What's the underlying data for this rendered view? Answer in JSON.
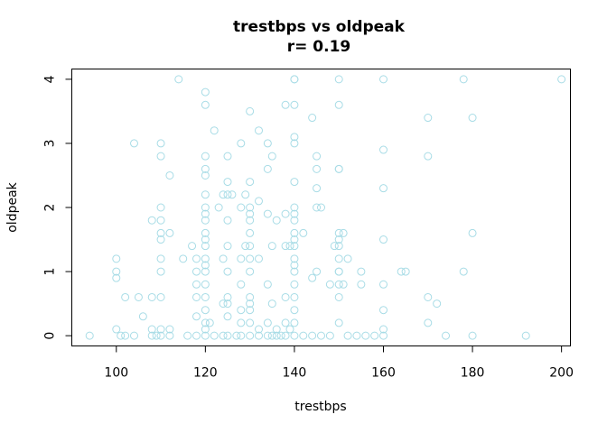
{
  "chart_data": {
    "type": "scatter",
    "title": "trestbps vs oldpeak",
    "subtitle": "r= 0.19",
    "xlabel": "trestbps",
    "ylabel": "oldpeak",
    "xlim": [
      90,
      202
    ],
    "ylim": [
      -0.16,
      4.16
    ],
    "x_ticks": [
      100,
      120,
      140,
      160,
      180,
      200
    ],
    "y_ticks": [
      0,
      1,
      2,
      3,
      4
    ],
    "grid": false,
    "point_color": "#a8dce6",
    "series": [
      {
        "points": [
          [
            94,
            0
          ],
          [
            100,
            1.2
          ],
          [
            100,
            1
          ],
          [
            100,
            0.9
          ],
          [
            100,
            0.1
          ],
          [
            101,
            0
          ],
          [
            102,
            0
          ],
          [
            102,
            0.6
          ],
          [
            104,
            3
          ],
          [
            104,
            0
          ],
          [
            105,
            0.6
          ],
          [
            106,
            0.3
          ],
          [
            108,
            0
          ],
          [
            108,
            0.6
          ],
          [
            108,
            0.1
          ],
          [
            108,
            1.8
          ],
          [
            109,
            0
          ],
          [
            110,
            3
          ],
          [
            110,
            2.8
          ],
          [
            110,
            2
          ],
          [
            110,
            1.8
          ],
          [
            110,
            1.6
          ],
          [
            110,
            1.5
          ],
          [
            110,
            1.2
          ],
          [
            110,
            1
          ],
          [
            110,
            0.6
          ],
          [
            110,
            0
          ],
          [
            110,
            0.1
          ],
          [
            112,
            2.5
          ],
          [
            112,
            1.6
          ],
          [
            112,
            0.1
          ],
          [
            112,
            0
          ],
          [
            114,
            4
          ],
          [
            115,
            1.2
          ],
          [
            116,
            0
          ],
          [
            117,
            1.4
          ],
          [
            118,
            1.2
          ],
          [
            118,
            0.8
          ],
          [
            118,
            0.6
          ],
          [
            118,
            0.3
          ],
          [
            118,
            0
          ],
          [
            118,
            1
          ],
          [
            120,
            3.8
          ],
          [
            120,
            3.6
          ],
          [
            120,
            2.8
          ],
          [
            120,
            2.6
          ],
          [
            120,
            2.5
          ],
          [
            120,
            2.2
          ],
          [
            120,
            2
          ],
          [
            120,
            1.9
          ],
          [
            120,
            1.8
          ],
          [
            120,
            1.6
          ],
          [
            120,
            1.5
          ],
          [
            120,
            1.4
          ],
          [
            120,
            1.2
          ],
          [
            120,
            1.1
          ],
          [
            120,
            1
          ],
          [
            120,
            0.8
          ],
          [
            120,
            0.6
          ],
          [
            120,
            0.4
          ],
          [
            120,
            0.2
          ],
          [
            120,
            0.1
          ],
          [
            120,
            0
          ],
          [
            121,
            0.2
          ],
          [
            122,
            3.2
          ],
          [
            122,
            0
          ],
          [
            123,
            2
          ],
          [
            124,
            2.2
          ],
          [
            124,
            1.2
          ],
          [
            124,
            0.5
          ],
          [
            124,
            0
          ],
          [
            125,
            2.8
          ],
          [
            125,
            2.4
          ],
          [
            125,
            2.2
          ],
          [
            125,
            1.8
          ],
          [
            125,
            1.4
          ],
          [
            125,
            1
          ],
          [
            125,
            0.6
          ],
          [
            125,
            0.5
          ],
          [
            125,
            0.3
          ],
          [
            125,
            0
          ],
          [
            126,
            2.2
          ],
          [
            127,
            0
          ],
          [
            128,
            3
          ],
          [
            128,
            2
          ],
          [
            128,
            1.2
          ],
          [
            128,
            0.8
          ],
          [
            128,
            0.4
          ],
          [
            128,
            0.2
          ],
          [
            128,
            0
          ],
          [
            129,
            2.2
          ],
          [
            129,
            1.4
          ],
          [
            130,
            3.5
          ],
          [
            130,
            2.4
          ],
          [
            130,
            2
          ],
          [
            130,
            1.9
          ],
          [
            130,
            1.8
          ],
          [
            130,
            1.6
          ],
          [
            130,
            1.4
          ],
          [
            130,
            1.2
          ],
          [
            130,
            1
          ],
          [
            130,
            0.6
          ],
          [
            130,
            0.5
          ],
          [
            130,
            0.4
          ],
          [
            130,
            0.2
          ],
          [
            130,
            0
          ],
          [
            132,
            3.2
          ],
          [
            132,
            2.1
          ],
          [
            132,
            1.2
          ],
          [
            132,
            0
          ],
          [
            132,
            0.1
          ],
          [
            134,
            3
          ],
          [
            134,
            2.6
          ],
          [
            134,
            1.9
          ],
          [
            134,
            0.8
          ],
          [
            134,
            0.2
          ],
          [
            134,
            0
          ],
          [
            135,
            2.8
          ],
          [
            135,
            1.4
          ],
          [
            135,
            0.5
          ],
          [
            135,
            0
          ],
          [
            136,
            1.8
          ],
          [
            136,
            0.1
          ],
          [
            136,
            0
          ],
          [
            137,
            0
          ],
          [
            138,
            3.6
          ],
          [
            138,
            1.9
          ],
          [
            138,
            1.4
          ],
          [
            138,
            0.6
          ],
          [
            138,
            0.2
          ],
          [
            138,
            0
          ],
          [
            139,
            1.4
          ],
          [
            139,
            0.1
          ],
          [
            140,
            4
          ],
          [
            140,
            4
          ],
          [
            140,
            3.6
          ],
          [
            140,
            3.1
          ],
          [
            140,
            3
          ],
          [
            140,
            2.4
          ],
          [
            140,
            2
          ],
          [
            140,
            1.9
          ],
          [
            140,
            1.8
          ],
          [
            140,
            1.6
          ],
          [
            140,
            1.5
          ],
          [
            140,
            1.4
          ],
          [
            140,
            1.2
          ],
          [
            140,
            1.1
          ],
          [
            140,
            1
          ],
          [
            140,
            0.8
          ],
          [
            140,
            0.6
          ],
          [
            140,
            0.4
          ],
          [
            140,
            0.2
          ],
          [
            140,
            0
          ],
          [
            142,
            1.6
          ],
          [
            142,
            0
          ],
          [
            144,
            3.4
          ],
          [
            144,
            0.9
          ],
          [
            144,
            0
          ],
          [
            145,
            2.8
          ],
          [
            145,
            2.6
          ],
          [
            145,
            2.3
          ],
          [
            145,
            2
          ],
          [
            145,
            1
          ],
          [
            146,
            2
          ],
          [
            146,
            0
          ],
          [
            148,
            0.8
          ],
          [
            148,
            0
          ],
          [
            149,
            1.4
          ],
          [
            150,
            4
          ],
          [
            150,
            3.6
          ],
          [
            150,
            2.6
          ],
          [
            150,
            2.6
          ],
          [
            150,
            1.6
          ],
          [
            150,
            1.5
          ],
          [
            150,
            1.4
          ],
          [
            150,
            1.2
          ],
          [
            150,
            1
          ],
          [
            150,
            0.8
          ],
          [
            150,
            0.6
          ],
          [
            150,
            0.2
          ],
          [
            150,
            1
          ],
          [
            151,
            1.6
          ],
          [
            151,
            0.8
          ],
          [
            152,
            1.2
          ],
          [
            152,
            0
          ],
          [
            154,
            0
          ],
          [
            155,
            1
          ],
          [
            155,
            0.8
          ],
          [
            156,
            0
          ],
          [
            158,
            0
          ],
          [
            160,
            4
          ],
          [
            160,
            2.9
          ],
          [
            160,
            2.3
          ],
          [
            160,
            1.5
          ],
          [
            160,
            0.8
          ],
          [
            160,
            0.4
          ],
          [
            160,
            0.1
          ],
          [
            160,
            0
          ],
          [
            164,
            1
          ],
          [
            165,
            1
          ],
          [
            170,
            3.4
          ],
          [
            170,
            2.8
          ],
          [
            170,
            0.6
          ],
          [
            170,
            0.2
          ],
          [
            172,
            0.5
          ],
          [
            174,
            0
          ],
          [
            178,
            4
          ],
          [
            178,
            1
          ],
          [
            180,
            3.4
          ],
          [
            180,
            1.6
          ],
          [
            180,
            0
          ],
          [
            192,
            0
          ],
          [
            200,
            4
          ]
        ]
      }
    ]
  }
}
